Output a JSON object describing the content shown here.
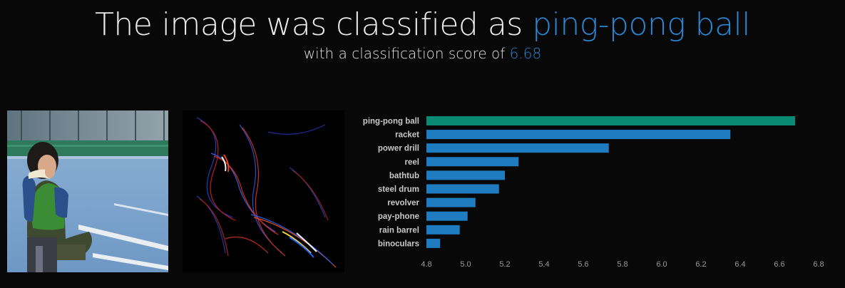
{
  "header": {
    "title_prefix": "The image was classified as ",
    "predicted_label": "ping-pong ball",
    "subtitle_prefix": "with a classification score of ",
    "score": "6.68"
  },
  "colors": {
    "accent": "#2b86d4",
    "top_bar": "#0a8a72",
    "bar": "#1f7cc0",
    "tick_text": "#9a9a9a",
    "label_text": "#c8c8c8"
  },
  "chart_data": {
    "type": "bar",
    "orientation": "horizontal",
    "categories": [
      "ping-pong ball",
      "racket",
      "power drill",
      "reel",
      "bathtub",
      "steel drum",
      "revolver",
      "pay-phone",
      "rain barrel",
      "binoculars"
    ],
    "values": [
      6.68,
      6.35,
      5.73,
      5.27,
      5.2,
      5.17,
      5.05,
      5.01,
      4.97,
      4.87
    ],
    "xticks": [
      "4.8",
      "5.0",
      "5.2",
      "5.4",
      "5.6",
      "5.8",
      "6.0",
      "6.2",
      "6.4",
      "6.6",
      "6.8"
    ],
    "xlim": [
      4.8,
      6.8
    ],
    "grid": false,
    "highlight_first": true
  }
}
